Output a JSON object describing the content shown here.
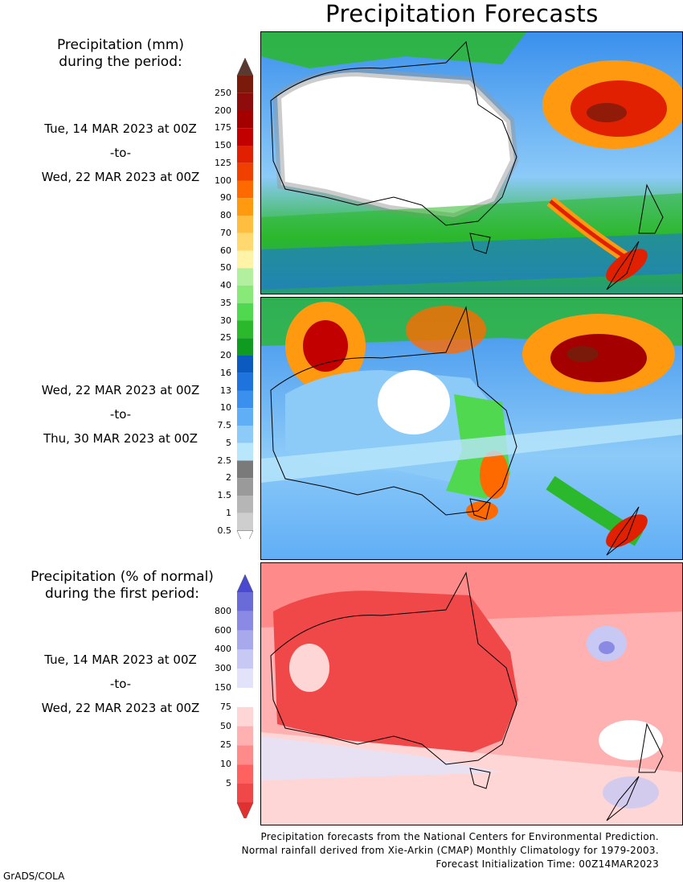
{
  "title": "Precipitation Forecasts",
  "precip_legend": {
    "header_line1": "Precipitation (mm)",
    "header_line2": "during the period:",
    "ticks": [
      "250",
      "200",
      "175",
      "150",
      "125",
      "100",
      "90",
      "80",
      "70",
      "60",
      "50",
      "40",
      "35",
      "30",
      "25",
      "20",
      "16",
      "13",
      "10",
      "7.5",
      "5",
      "2.5",
      "2",
      "1.5",
      "1",
      "0.5"
    ],
    "colors": [
      "#7a1a0a",
      "#8e0c0c",
      "#a40000",
      "#c20000",
      "#e02000",
      "#f04000",
      "#ff6a00",
      "#ff9a10",
      "#ffbe40",
      "#ffd870",
      "#fff3a8",
      "#b2f0a0",
      "#88e878",
      "#50d850",
      "#2cb82c",
      "#0f9a20",
      "#0a5ac0",
      "#1e74dc",
      "#3a90ec",
      "#60aef6",
      "#8ccaf8",
      "#b8e6fa",
      "#7a7a7a",
      "#9a9a9a",
      "#b6b6b6",
      "#cecece"
    ]
  },
  "period1": {
    "start": "Tue, 14 MAR 2023 at 00Z",
    "sep": "-to-",
    "end": "Wed, 22 MAR 2023 at 00Z"
  },
  "period2": {
    "start": "Wed, 22 MAR 2023 at 00Z",
    "sep": "-to-",
    "end": "Thu, 30 MAR 2023 at 00Z"
  },
  "anomaly_legend": {
    "header_line1": "Precipitation (% of normal)",
    "header_line2": "during the first period:",
    "ticks": [
      "800",
      "600",
      "400",
      "300",
      "150",
      "75",
      "50",
      "25",
      "10",
      "5"
    ],
    "colors": [
      "#6a6ad8",
      "#8a8ae4",
      "#a8a8ec",
      "#c8c8f4",
      "#e2e2fa",
      "#ffffff",
      "#ffd6d6",
      "#ffb0b0",
      "#ff8a8a",
      "#ff6060",
      "#f04848"
    ]
  },
  "period3": {
    "start": "Tue, 14 MAR 2023 at 00Z",
    "sep": "-to-",
    "end": "Wed, 22 MAR 2023 at 00Z"
  },
  "footer": {
    "line1": "Precipitation forecasts from the National Centers for Environmental Prediction.",
    "line2": "Normal rainfall derived from Xie-Arkin (CMAP) Monthly Climatology for 1979-2003.",
    "line3": "Forecast Initialization Time: 00Z14MAR2023"
  },
  "credit": "GrADS/COLA"
}
